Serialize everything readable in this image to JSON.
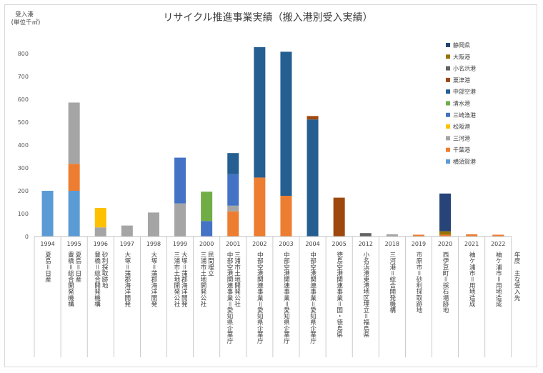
{
  "chart_data": {
    "type": "bar",
    "stacked": true,
    "title": "リサイクル推進事業実績（搬入港別受入実績）",
    "ylabel": "受入港",
    "yunit": "(単位千㎥)",
    "ylim": [
      0,
      900
    ],
    "yticks": [
      0,
      100,
      200,
      300,
      400,
      500,
      600,
      700,
      800
    ],
    "grid": false,
    "legend_position": "right",
    "row_label": "年度　主な受入先",
    "categories": [
      "1994",
      "1995",
      "1996",
      "1997",
      "1998",
      "1999",
      "2000",
      "2001",
      "2002",
      "2003",
      "2004",
      "2005",
      "2012",
      "2018",
      "2019",
      "2020",
      "2021",
      "2022"
    ],
    "destinations": [
      "夏島＝日産",
      "夏島＝日産｜豊橋＝総合開発機構",
      "砂利採取跡地｜豊橋＝総合開発機構",
      "大塚＝蒲郡海洋開発",
      "大塚＝蒲郡海洋開発",
      "大塚＝蒲郡海洋開発｜三浦市土地開発公社",
      "民間埋立｜三浦市土地開発公社",
      "三浦市土地開発公社｜中部空港関連事業＝愛知県企業庁",
      "中部空港関連事業＝愛知県企業庁",
      "中部空港関連事業＝愛知県企業庁",
      "中部空港関連事業＝愛知県企業庁",
      "徳島空港関連事業＝国・徳島県",
      "小名浜港東港地区埋立＝福島県",
      "三河港＝総合開発機構",
      "市原市＝砂利採取跡地",
      "西伊豆町＝採石場跡地",
      "袖ケ浦市＝用地造成",
      "袖ケ浦市＝用地造成"
    ],
    "series": [
      {
        "name": "横須賀港",
        "color": "#5B9BD5",
        "values": [
          200,
          200,
          0,
          0,
          0,
          0,
          0,
          0,
          0,
          0,
          0,
          0,
          0,
          0,
          0,
          0,
          0,
          0
        ]
      },
      {
        "name": "千葉港",
        "color": "#ED7D31",
        "values": [
          0,
          118,
          0,
          0,
          0,
          0,
          0,
          110,
          258,
          178,
          0,
          0,
          0,
          0,
          8,
          8,
          10,
          8
        ]
      },
      {
        "name": "三河港",
        "color": "#A5A5A5",
        "values": [
          0,
          268,
          40,
          48,
          105,
          145,
          0,
          25,
          0,
          0,
          0,
          0,
          0,
          10,
          0,
          0,
          0,
          0
        ]
      },
      {
        "name": "松阪港",
        "color": "#FFC000",
        "values": [
          0,
          0,
          85,
          0,
          0,
          0,
          0,
          0,
          0,
          0,
          0,
          0,
          0,
          0,
          0,
          0,
          0,
          0
        ]
      },
      {
        "name": "三崎漁港",
        "color": "#4472C4",
        "values": [
          0,
          0,
          0,
          0,
          0,
          200,
          68,
          138,
          0,
          0,
          0,
          0,
          0,
          0,
          0,
          0,
          0,
          0
        ]
      },
      {
        "name": "清水港",
        "color": "#70AD47",
        "values": [
          0,
          0,
          0,
          0,
          0,
          0,
          128,
          0,
          0,
          0,
          0,
          0,
          0,
          0,
          0,
          0,
          0,
          0
        ]
      },
      {
        "name": "中部空港",
        "color": "#255E91",
        "values": [
          0,
          0,
          0,
          0,
          0,
          0,
          0,
          92,
          570,
          630,
          512,
          0,
          0,
          0,
          0,
          0,
          0,
          0
        ]
      },
      {
        "name": "粟津港",
        "color": "#9E480E",
        "values": [
          0,
          0,
          0,
          0,
          0,
          0,
          0,
          0,
          0,
          0,
          15,
          170,
          0,
          0,
          0,
          0,
          0,
          0
        ]
      },
      {
        "name": "小名浜港",
        "color": "#636363",
        "values": [
          0,
          0,
          0,
          0,
          0,
          0,
          0,
          0,
          0,
          0,
          0,
          0,
          15,
          0,
          0,
          0,
          0,
          0
        ]
      },
      {
        "name": "大阪港",
        "color": "#997300",
        "values": [
          0,
          0,
          0,
          0,
          0,
          0,
          0,
          0,
          0,
          0,
          0,
          0,
          0,
          0,
          0,
          15,
          0,
          0
        ]
      },
      {
        "name": "静岡県",
        "color": "#264478",
        "values": [
          0,
          0,
          0,
          0,
          0,
          0,
          0,
          0,
          0,
          0,
          0,
          0,
          0,
          0,
          0,
          165,
          0,
          0
        ]
      }
    ]
  }
}
